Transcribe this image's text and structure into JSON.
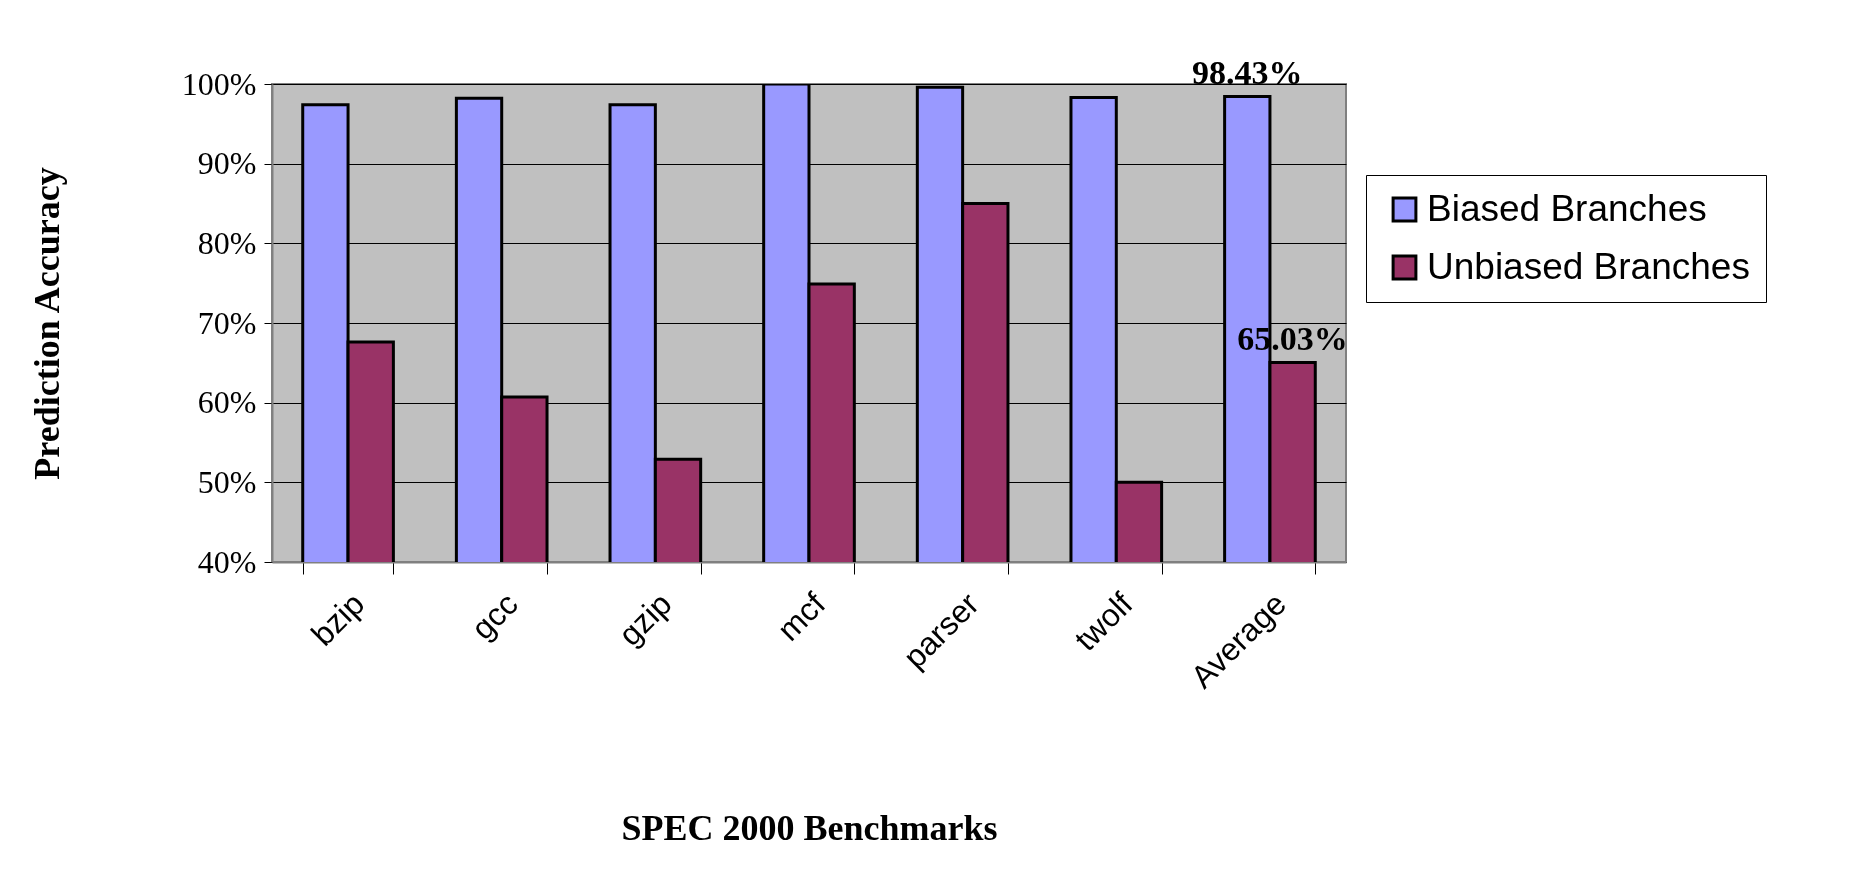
{
  "chart_data": {
    "type": "bar",
    "xlabel": "SPEC 2000 Benchmarks",
    "ylabel": "Prediction Accuracy",
    "categories": [
      "bzip",
      "gcc",
      "gzip",
      "mcf",
      "parser",
      "twolf",
      "Average"
    ],
    "series": [
      {
        "name": "Biased Branches",
        "color": "#9999ff",
        "values": [
          97.4,
          98.2,
          97.4,
          100,
          99.6,
          98.3,
          98.43
        ],
        "value_labels": [
          null,
          null,
          null,
          null,
          null,
          null,
          "98.43%"
        ]
      },
      {
        "name": "Unbiased Branches",
        "color": "#993366",
        "values": [
          67.6,
          60.7,
          52.9,
          74.9,
          85.0,
          50.0,
          65.03
        ],
        "value_labels": [
          null,
          null,
          null,
          null,
          null,
          null,
          "65.03%"
        ]
      }
    ],
    "ylim": [
      40,
      100
    ],
    "yticks": [
      {
        "value": 40,
        "label": "40%"
      },
      {
        "value": 50,
        "label": "50%"
      },
      {
        "value": 60,
        "label": "60%"
      },
      {
        "value": 70,
        "label": "70%"
      },
      {
        "value": 80,
        "label": "80%"
      },
      {
        "value": 90,
        "label": "90%"
      },
      {
        "value": 100,
        "label": "100%"
      }
    ],
    "grid": "y",
    "legend": "right"
  }
}
